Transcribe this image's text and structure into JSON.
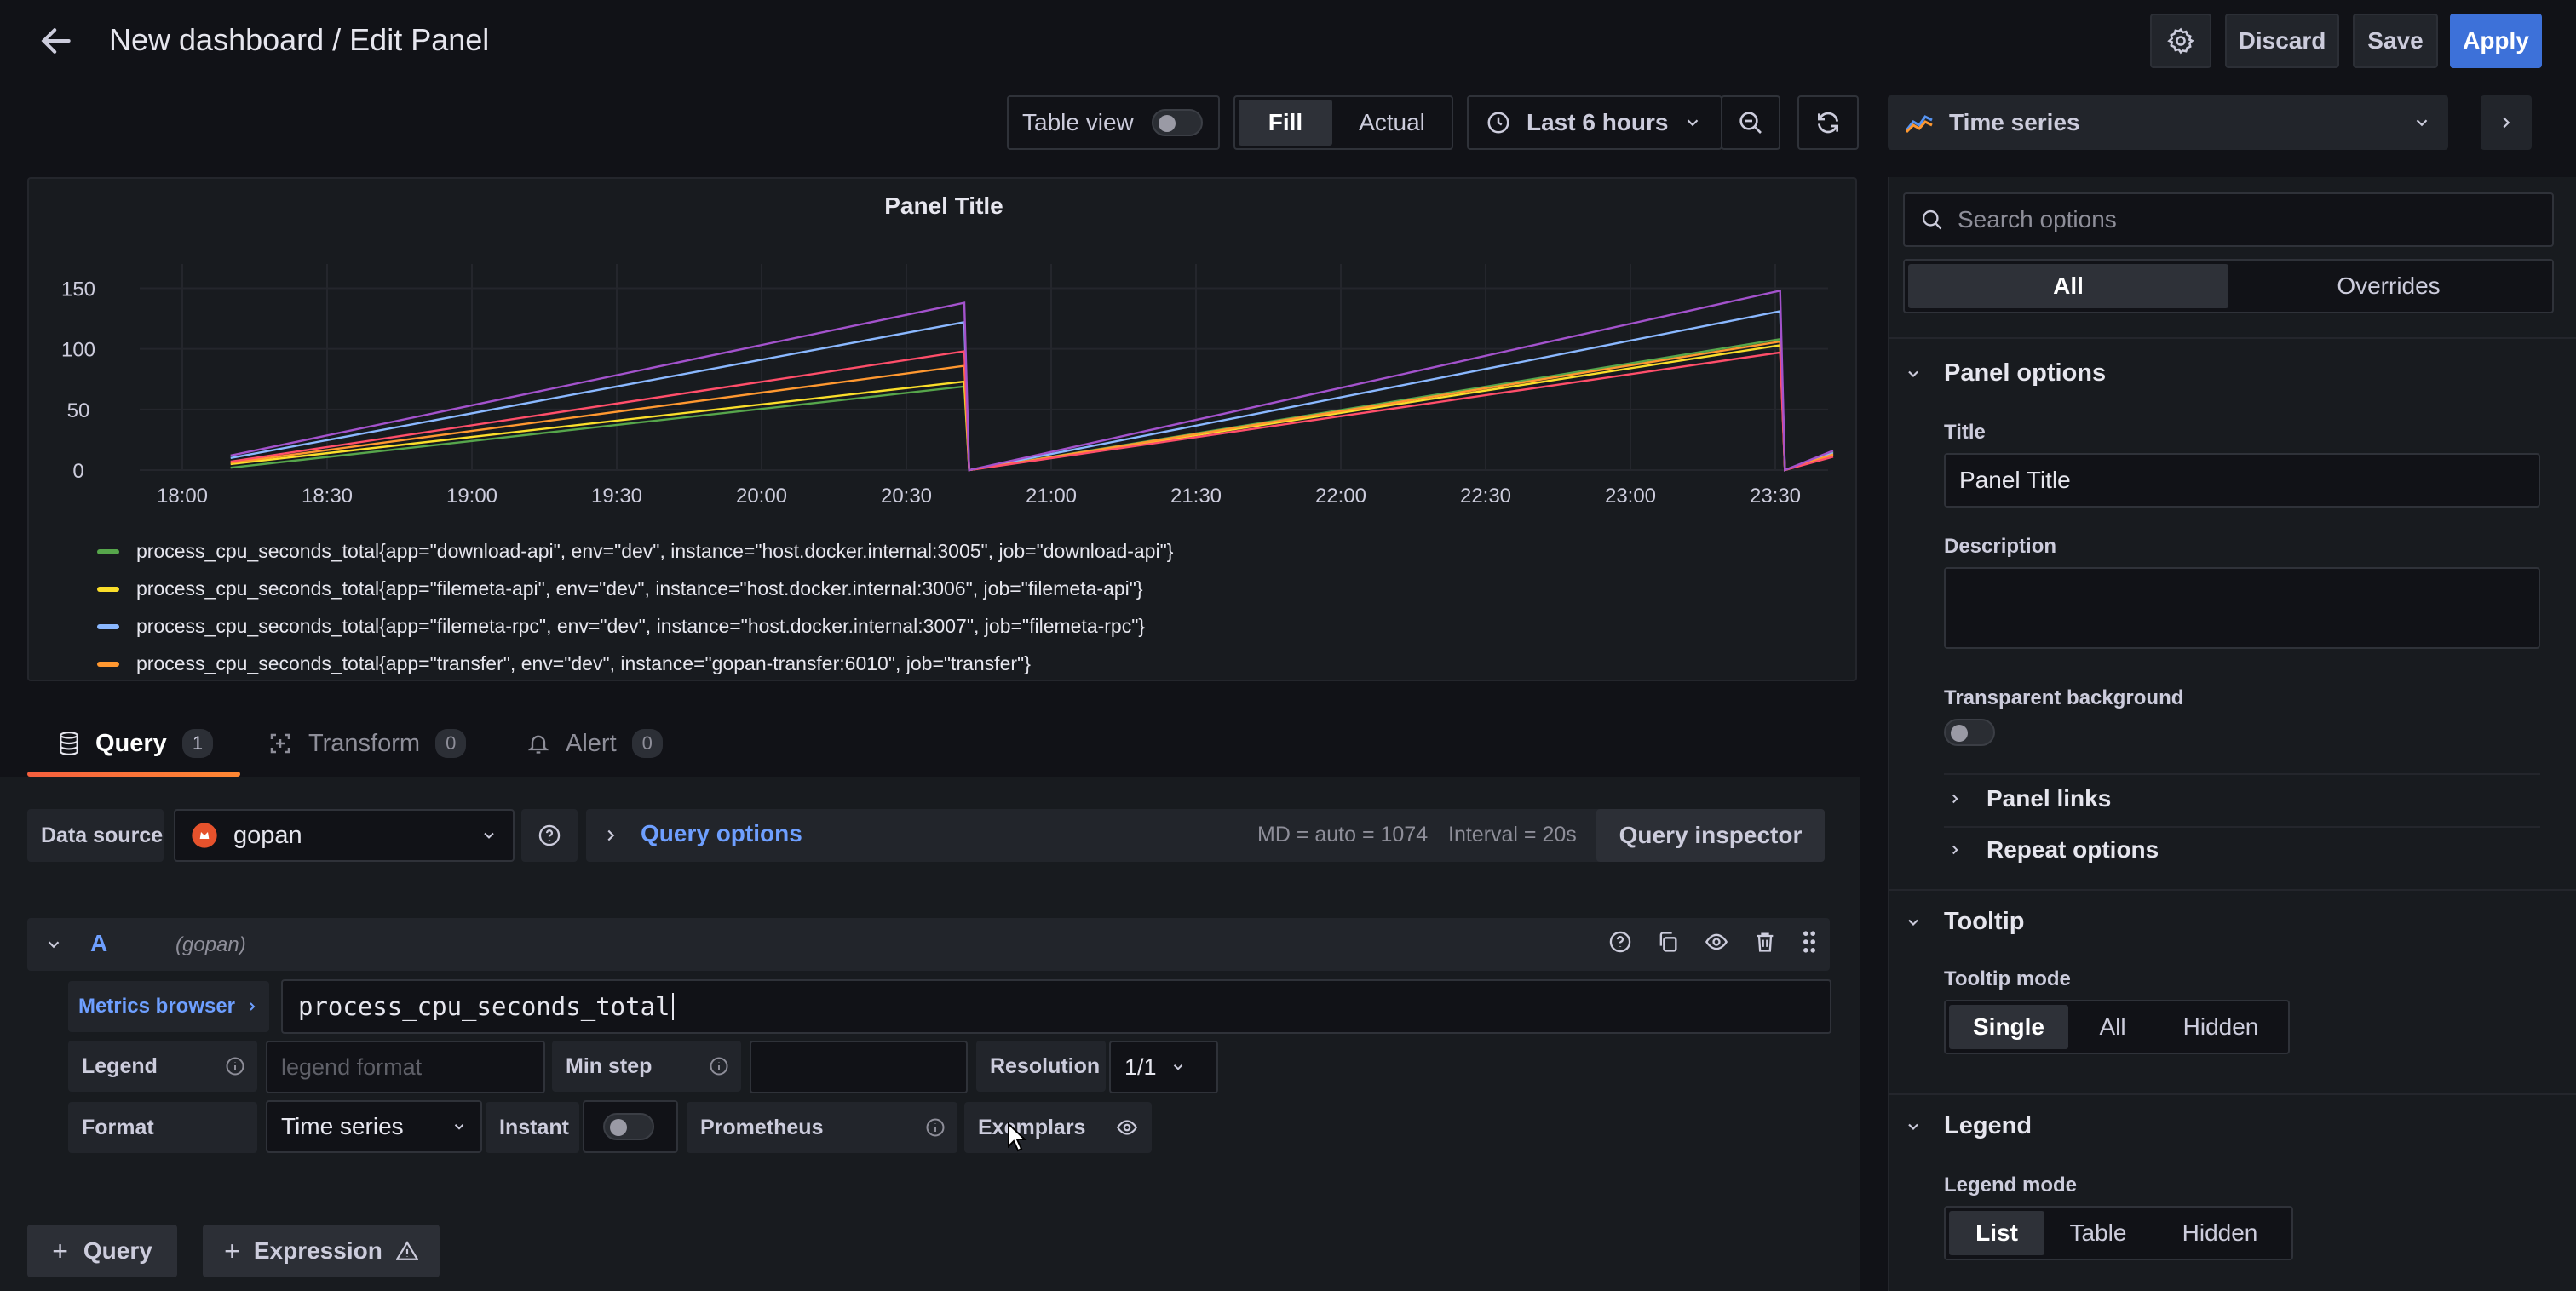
{
  "header": {
    "title": "New dashboard / Edit Panel",
    "discard_label": "Discard",
    "save_label": "Save",
    "apply_label": "Apply"
  },
  "toolbar": {
    "table_view_label": "Table view",
    "fill_label": "Fill",
    "actual_label": "Actual",
    "time_range_label": "Last 6 hours"
  },
  "viz_picker": {
    "label": "Time series"
  },
  "panel": {
    "title": "Panel Title"
  },
  "chart_data": {
    "type": "line",
    "title": "Panel Title",
    "xlabel": "",
    "ylabel": "",
    "ylim": [
      0,
      170
    ],
    "yticks": [
      "150",
      "100",
      "50",
      "0"
    ],
    "xticks": [
      "18:00",
      "18:30",
      "19:00",
      "19:30",
      "20:00",
      "20:30",
      "21:00",
      "21:30",
      "22:00",
      "22:30",
      "23:00",
      "23:30"
    ],
    "legend_placement": "bottom",
    "grid": true,
    "x": [
      "18:10",
      "20:42",
      "20:43",
      "23:31",
      "23:32",
      "23:42"
    ],
    "series": [
      {
        "name": "process_cpu_seconds_total{app=\"download-api\", env=\"dev\", instance=\"host.docker.internal:3005\", job=\"download-api\"}",
        "color": "#56a64b",
        "values": [
          2,
          69,
          0,
          108,
          0,
          15
        ]
      },
      {
        "name": "process_cpu_seconds_total{app=\"filemeta-api\", env=\"dev\", instance=\"host.docker.internal:3006\", job=\"filemeta-api\"}",
        "color": "#fade2a",
        "values": [
          5,
          73,
          0,
          103,
          0,
          12
        ]
      },
      {
        "name": "process_cpu_seconds_total{app=\"filemeta-rpc\", env=\"dev\", instance=\"host.docker.internal:3007\", job=\"filemeta-rpc\"}",
        "color": "#8ab8ff",
        "values": [
          10,
          122,
          0,
          131,
          0,
          14
        ]
      },
      {
        "name": "process_cpu_seconds_total{app=\"transfer\", env=\"dev\", instance=\"gopan-transfer:6010\", job=\"transfer\"}",
        "color": "#ff9830",
        "values": [
          6,
          86,
          0,
          106,
          0,
          13
        ]
      },
      {
        "name": "",
        "color": "#ff4e6a",
        "values": [
          7,
          98,
          0,
          97,
          0,
          11
        ]
      },
      {
        "name": "",
        "color": "#a352cc",
        "values": [
          12,
          138,
          0,
          148,
          0,
          16
        ]
      }
    ]
  },
  "legend": [
    {
      "color": "#56a64b",
      "text": "process_cpu_seconds_total{app=\"download-api\", env=\"dev\", instance=\"host.docker.internal:3005\", job=\"download-api\"}"
    },
    {
      "color": "#fade2a",
      "text": "process_cpu_seconds_total{app=\"filemeta-api\", env=\"dev\", instance=\"host.docker.internal:3006\", job=\"filemeta-api\"}"
    },
    {
      "color": "#8ab8ff",
      "text": "process_cpu_seconds_total{app=\"filemeta-rpc\", env=\"dev\", instance=\"host.docker.internal:3007\", job=\"filemeta-rpc\"}"
    },
    {
      "color": "#ff9830",
      "text": "process_cpu_seconds_total{app=\"transfer\", env=\"dev\", instance=\"gopan-transfer:6010\", job=\"transfer\"}"
    }
  ],
  "tabs": [
    {
      "label": "Query",
      "count": "1"
    },
    {
      "label": "Transform",
      "count": "0"
    },
    {
      "label": "Alert",
      "count": "0"
    }
  ],
  "query_row": {
    "datasource_label": "Data source",
    "datasource_value": "gopan",
    "query_options_label": "Query options",
    "md_text": "MD = auto = 1074",
    "interval_text": "Interval = 20s",
    "inspector_label": "Query inspector"
  },
  "query_a": {
    "ref": "A",
    "datasource": "(gopan)",
    "metrics_browser_label": "Metrics browser",
    "expression": "process_cpu_seconds_total",
    "legend_label": "Legend",
    "legend_placeholder": "legend format",
    "min_step_label": "Min step",
    "resolution_label": "Resolution",
    "resolution_value": "1/1",
    "format_label": "Format",
    "format_value": "Time series",
    "instant_label": "Instant",
    "prometheus_label": "Prometheus",
    "exemplars_label": "Exemplars"
  },
  "bottom_buttons": {
    "query_label": "Query",
    "expression_label": "Expression"
  },
  "options": {
    "search_placeholder": "Search options",
    "tab_all": "All",
    "tab_overrides": "Overrides",
    "panel_options": "Panel options",
    "title_label": "Title",
    "title_value": "Panel Title",
    "description_label": "Description",
    "transparent_label": "Transparent background",
    "panel_links": "Panel links",
    "repeat_options": "Repeat options",
    "tooltip_section": "Tooltip",
    "tooltip_mode_label": "Tooltip mode",
    "tooltip_modes": [
      "Single",
      "All",
      "Hidden"
    ],
    "legend_section": "Legend",
    "legend_mode_label": "Legend mode",
    "legend_modes": [
      "List",
      "Table",
      "Hidden"
    ]
  },
  "colors": {
    "accent_blue": "#3d71d9",
    "link_blue": "#6e9fff",
    "tab_underline": "#f55f3e",
    "bg": "#111217",
    "panel_bg": "#181b1f"
  }
}
